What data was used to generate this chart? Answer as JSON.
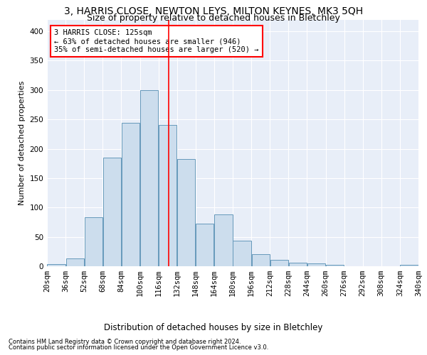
{
  "title": "3, HARRIS CLOSE, NEWTON LEYS, MILTON KEYNES, MK3 5QH",
  "subtitle": "Size of property relative to detached houses in Bletchley",
  "xlabel_bottom": "Distribution of detached houses by size in Bletchley",
  "ylabel": "Number of detached properties",
  "footer1": "Contains HM Land Registry data © Crown copyright and database right 2024.",
  "footer2": "Contains public sector information licensed under the Open Government Licence v3.0.",
  "bar_edges": [
    20,
    36,
    52,
    68,
    84,
    100,
    116,
    132,
    148,
    164,
    180,
    196,
    212,
    228,
    244,
    260,
    276,
    292,
    308,
    324,
    340
  ],
  "bar_heights": [
    4,
    13,
    83,
    185,
    244,
    300,
    240,
    182,
    72,
    88,
    44,
    20,
    11,
    6,
    5,
    3,
    0,
    0,
    0,
    3
  ],
  "bar_color": "#ccdded",
  "bar_edgecolor": "#6699bb",
  "vline_x": 125,
  "vline_color": "red",
  "annotation_text": "3 HARRIS CLOSE: 125sqm\n← 63% of detached houses are smaller (946)\n35% of semi-detached houses are larger (520) →",
  "annotation_box_color": "white",
  "annotation_box_edgecolor": "red",
  "ylim": [
    0,
    420
  ],
  "xlim": [
    20,
    340
  ],
  "plot_bg": "#e8eef8",
  "grid_color": "white",
  "tick_labels": [
    "20sqm",
    "36sqm",
    "52sqm",
    "68sqm",
    "84sqm",
    "100sqm",
    "116sqm",
    "132sqm",
    "148sqm",
    "164sqm",
    "180sqm",
    "196sqm",
    "212sqm",
    "228sqm",
    "244sqm",
    "260sqm",
    "276sqm",
    "292sqm",
    "308sqm",
    "324sqm",
    "340sqm"
  ],
  "title_fontsize": 10,
  "subtitle_fontsize": 9,
  "ylabel_fontsize": 8,
  "tick_fontsize": 7.5,
  "annotation_fontsize": 7.5,
  "footer_fontsize": 6,
  "xlabel_fontsize": 8.5
}
